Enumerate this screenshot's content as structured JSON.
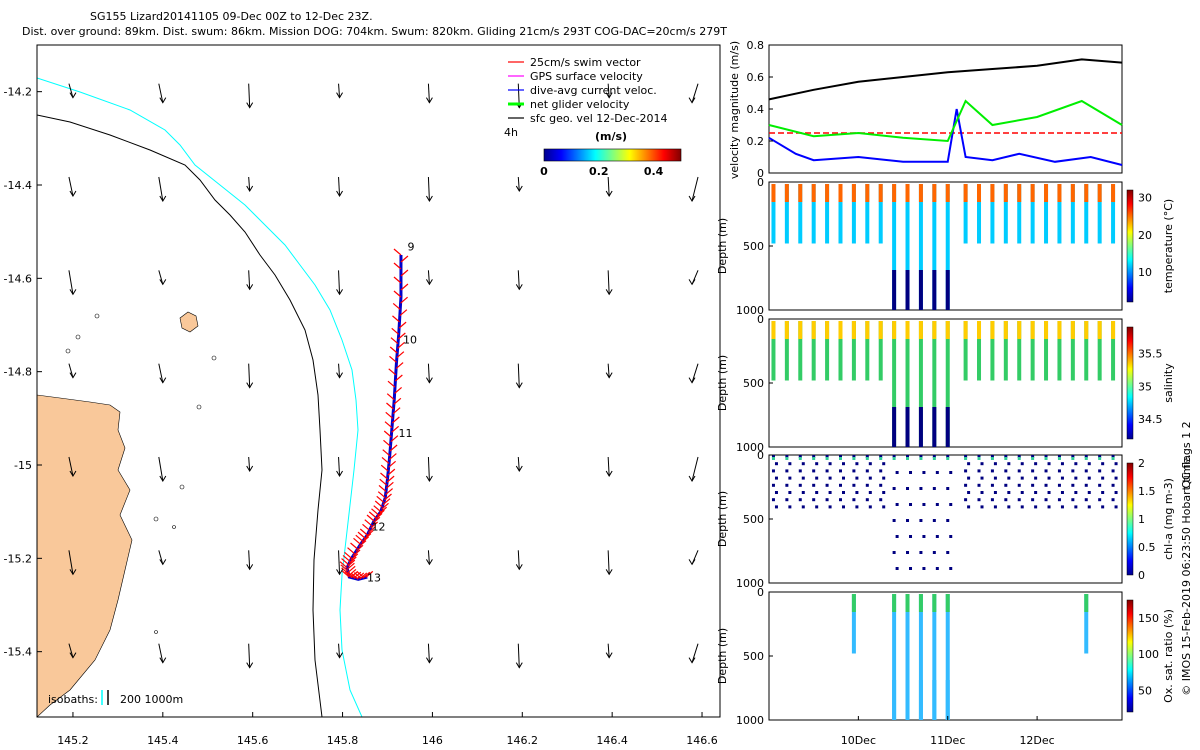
{
  "header": {
    "line1": "SG155 Lizard20141105 09-Dec 00Z to 12-Dec 23Z.",
    "line2": "Dist. over ground: 89km. Dist. swum: 86km. Mission DOG: 704km. Swum: 820km. Gliding 21cm/s 293T COG-DAC=20cm/s 279T"
  },
  "map": {
    "xticks": [
      "145.2",
      "145.4",
      "145.6",
      "145.8",
      "146",
      "146.2",
      "146.4",
      "146.6"
    ],
    "yticks": [
      "-14.2",
      "-14.4",
      "-14.6",
      "-14.8",
      "-15",
      "-15.2",
      "-15.4"
    ],
    "legend": [
      "25cm/s swim vector",
      "GPS surface velocity",
      "dive-avg current veloc.",
      "net glider velocity",
      "sfc geo. vel 12-Dec-2014"
    ],
    "legend_colors": [
      "#ff0000",
      "#ff00ff",
      "#0000ff",
      "#00ff00",
      "#000000"
    ],
    "legend_extra": "4h",
    "colorbar_title": "(m/s)",
    "colorbar_ticks": [
      "0",
      "0.2",
      "0.4"
    ],
    "isobaths_label": "isobaths:",
    "isobaths_values": "200  1000m",
    "track_day_labels": [
      "9",
      "10",
      "11",
      "12",
      "13"
    ],
    "land_color": "#f9c89a",
    "isobath200_color": "#00ffff",
    "isobath1000_color": "#000000"
  },
  "right": {
    "x_ticks": [
      "10Dec",
      "11Dec",
      "12Dec"
    ],
    "velocity_panel": {
      "ylabel": "velocity magnitude (m/s)",
      "yticks": [
        "0",
        "0.2",
        "0.4",
        "0.6",
        "0.8"
      ]
    },
    "profiles": [
      {
        "ylabel": "Depth (m)",
        "yticks": [
          "0",
          "500",
          "1000"
        ],
        "cbar_label": "temperature (°C)",
        "cbar_ticks": [
          "10",
          "20",
          "30"
        ]
      },
      {
        "ylabel": "Depth (m)",
        "yticks": [
          "0",
          "500",
          "1000"
        ],
        "cbar_label": "salinity",
        "cbar_ticks": [
          "34.5",
          "35",
          "35.5"
        ]
      },
      {
        "ylabel": "Depth (m)",
        "yticks": [
          "0",
          "500",
          "1000"
        ],
        "cbar_label": "chl-a (mg m-3)",
        "cbar_ticks": [
          "0",
          "0.5",
          "1",
          "1.5",
          "2"
        ]
      },
      {
        "ylabel": "Depth (m)",
        "yticks": [
          "0",
          "500",
          "1000"
        ],
        "cbar_label": "Ox. sat. ratio (%)",
        "cbar_ticks": [
          "50",
          "100",
          "150"
        ]
      }
    ],
    "side_note": "QC flags 1  2",
    "footer": "© IMOS 15-Feb-2019 06:23:50 Hobart time."
  },
  "chart_data": [
    {
      "type": "scatter",
      "title": "SG155 Lizard20141105 09-Dec 00Z to 12-Dec 23Z.",
      "xlim": [
        145.12,
        146.64
      ],
      "ylim": [
        -15.54,
        -14.1
      ],
      "track_lon": [
        145.93,
        145.93,
        145.925,
        145.92,
        145.915,
        145.91,
        145.905,
        145.9,
        145.895,
        145.885,
        145.87,
        145.855,
        145.84,
        145.82,
        145.81,
        145.815,
        145.835,
        145.855
      ],
      "track_lat": [
        -14.55,
        -14.64,
        -14.72,
        -14.78,
        -14.86,
        -14.92,
        -14.98,
        -15.03,
        -15.07,
        -15.1,
        -15.12,
        -15.15,
        -15.17,
        -15.2,
        -15.22,
        -15.24,
        -15.245,
        -15.24
      ],
      "day_labels": [
        {
          "label": "9",
          "lon": 145.94,
          "lat": -14.54
        },
        {
          "label": "10",
          "lon": 145.93,
          "lat": -14.74
        },
        {
          "label": "11",
          "lon": 145.92,
          "lat": -14.94
        },
        {
          "label": "12",
          "lon": 145.86,
          "lat": -15.14
        },
        {
          "label": "13",
          "lon": 145.85,
          "lat": -15.25
        }
      ]
    },
    {
      "type": "line",
      "ylabel": "velocity magnitude (m/s)",
      "ylim": [
        0,
        0.8
      ],
      "xlim_days": [
        9.0,
        12.95
      ],
      "series": [
        {
          "color": "black",
          "x": [
            9.0,
            9.5,
            10.0,
            10.5,
            11.0,
            11.5,
            12.0,
            12.5,
            12.95
          ],
          "y": [
            0.46,
            0.52,
            0.57,
            0.6,
            0.63,
            0.65,
            0.67,
            0.71,
            0.69
          ]
        },
        {
          "color": "red",
          "x": [
            9.0,
            12.95
          ],
          "y": [
            0.25,
            0.25
          ]
        },
        {
          "color": "blue",
          "x": [
            9.0,
            9.3,
            9.5,
            10.0,
            10.5,
            11.0,
            11.1,
            11.2,
            11.5,
            11.8,
            12.2,
            12.6,
            12.95
          ],
          "y": [
            0.22,
            0.12,
            0.08,
            0.1,
            0.07,
            0.07,
            0.4,
            0.1,
            0.08,
            0.12,
            0.07,
            0.1,
            0.05
          ]
        },
        {
          "color": "green",
          "x": [
            9.0,
            9.5,
            10.0,
            10.5,
            11.0,
            11.2,
            11.5,
            12.0,
            12.5,
            12.95
          ],
          "y": [
            0.3,
            0.23,
            0.25,
            0.22,
            0.2,
            0.45,
            0.3,
            0.35,
            0.45,
            0.3
          ]
        }
      ]
    }
  ]
}
